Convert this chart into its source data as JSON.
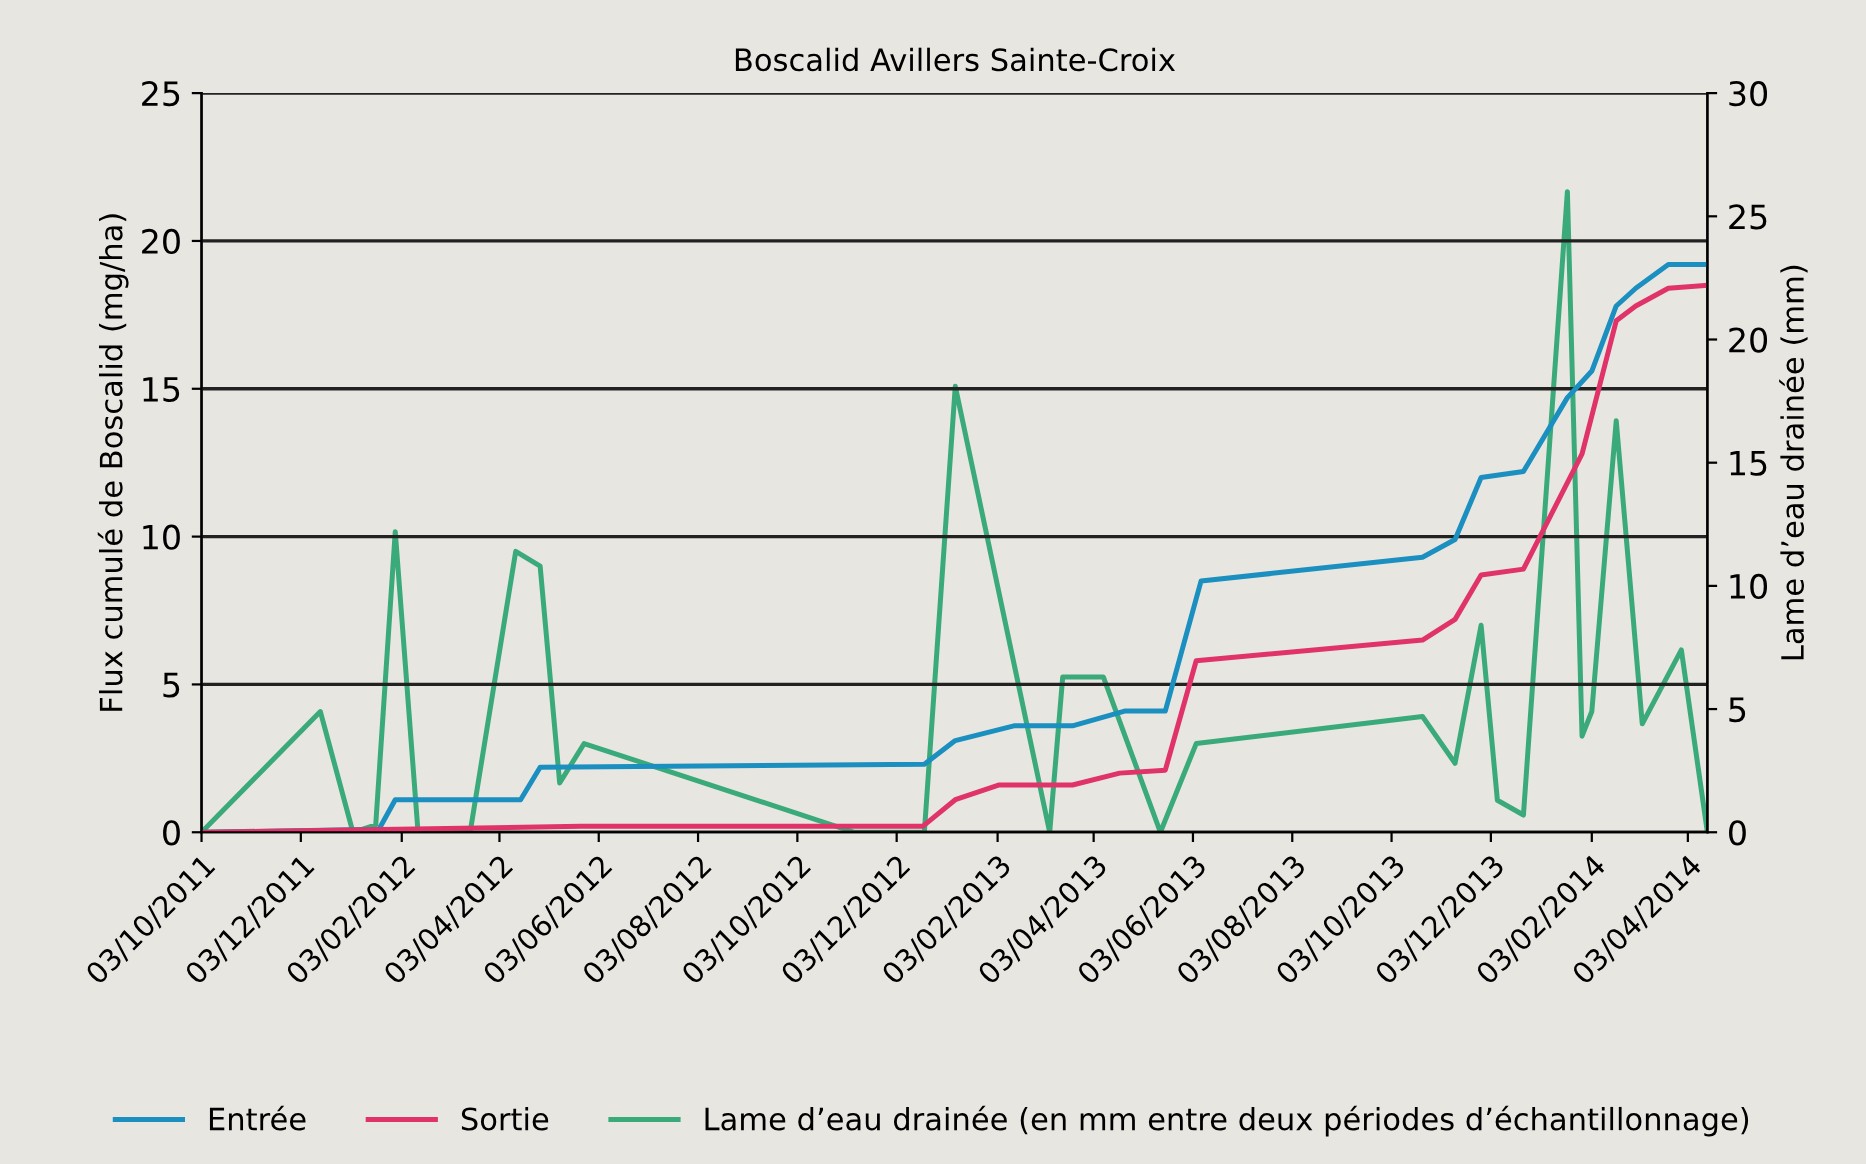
{
  "chart_data": {
    "type": "line",
    "title": "Boscalid Avillers Sainte-Croix",
    "ylabel": "Flux cumulé de Boscalid (mg/ha)",
    "y2label": "Lame d’eau drainée (mm)",
    "series": [
      {
        "name": "Entrée",
        "color": "#1a8fc0",
        "x": [
          "2011-10-03",
          "2012-01-20",
          "2012-01-30",
          "2012-04-16",
          "2012-04-28",
          "2012-12-20",
          "2013-01-08",
          "2013-02-13",
          "2013-03-21",
          "2013-04-22",
          "2013-05-17",
          "2013-06-08",
          "2013-10-22",
          "2013-11-11",
          "2013-11-27",
          "2013-12-23",
          "2014-01-19",
          "2014-02-03",
          "2014-02-18",
          "2014-03-02",
          "2014-03-22",
          "2014-04-15"
        ],
        "values": [
          0,
          0.1,
          1.1,
          1.1,
          2.2,
          2.3,
          3.1,
          3.6,
          3.6,
          4.1,
          4.1,
          8.5,
          9.3,
          9.9,
          12.0,
          12.2,
          14.7,
          15.6,
          17.8,
          18.4,
          19.2,
          19.2
        ]
      },
      {
        "name": "Sortie",
        "color": "#e0336a",
        "x": [
          "2011-10-03",
          "2012-05-23",
          "2012-12-19",
          "2013-01-08",
          "2013-02-04",
          "2013-03-21",
          "2013-04-19",
          "2013-05-17",
          "2013-06-05",
          "2013-10-22",
          "2013-11-11",
          "2013-11-27",
          "2013-12-23",
          "2014-01-28",
          "2014-02-18",
          "2014-03-02",
          "2014-03-22",
          "2014-04-15"
        ],
        "values": [
          0,
          0.2,
          0.2,
          1.1,
          1.6,
          1.6,
          2.0,
          2.1,
          5.8,
          6.5,
          7.2,
          8.7,
          8.9,
          12.8,
          17.3,
          17.8,
          18.4,
          18.5
        ]
      },
      {
        "name": "Lame d’eau drainée (en mm entre deux périodes d’échantillonnage)",
        "color": "#3aaa7a",
        "axis": "y2",
        "x": [
          "2011-10-03",
          "2011-12-15",
          "2012-01-04",
          "2012-01-18",
          "2012-01-30",
          "2012-02-13",
          "2012-03-16",
          "2012-04-13",
          "2012-04-28",
          "2012-05-10",
          "2012-05-25",
          "2012-11-07",
          "2012-12-20",
          "2013-01-08",
          "2013-03-07",
          "2013-03-15",
          "2013-04-09",
          "2013-05-14",
          "2013-06-05",
          "2013-10-22",
          "2013-11-11",
          "2013-11-27",
          "2013-12-07",
          "2013-12-23",
          "2014-01-19",
          "2014-01-28",
          "2014-02-03",
          "2014-02-18",
          "2014-03-06",
          "2014-03-30",
          "2014-04-15"
        ],
        "values": [
          0,
          4.9,
          0,
          0.3,
          12.2,
          0,
          0,
          11.4,
          10.8,
          2.0,
          3.6,
          0,
          0,
          18.1,
          0,
          6.3,
          6.3,
          0,
          3.6,
          4.7,
          2.8,
          8.4,
          1.3,
          0.7,
          26.0,
          3.9,
          4.9,
          16.7,
          4.4,
          7.4,
          0
        ]
      }
    ],
    "xlim": [
      "2011-10-03",
      "2014-04-15"
    ],
    "xticks": [
      {
        "value": "2011-10-03",
        "label": "03/10/2011"
      },
      {
        "value": "2011-12-03",
        "label": "03/12/2011"
      },
      {
        "value": "2012-02-03",
        "label": "03/02/2012"
      },
      {
        "value": "2012-04-03",
        "label": "03/04/2012"
      },
      {
        "value": "2012-06-03",
        "label": "03/06/2012"
      },
      {
        "value": "2012-08-03",
        "label": "03/08/2012"
      },
      {
        "value": "2012-10-03",
        "label": "03/10/2012"
      },
      {
        "value": "2012-12-03",
        "label": "03/12/2012"
      },
      {
        "value": "2013-02-03",
        "label": "03/02/2013"
      },
      {
        "value": "2013-04-03",
        "label": "03/04/2013"
      },
      {
        "value": "2013-06-03",
        "label": "03/06/2013"
      },
      {
        "value": "2013-08-03",
        "label": "03/08/2013"
      },
      {
        "value": "2013-10-03",
        "label": "03/10/2013"
      },
      {
        "value": "2013-12-03",
        "label": "03/12/2013"
      },
      {
        "value": "2014-02-03",
        "label": "03/02/2014"
      },
      {
        "value": "2014-04-03",
        "label": "03/04/2014"
      }
    ],
    "ylim": [
      0,
      25
    ],
    "yticks": [
      0,
      5,
      10,
      15,
      20,
      25
    ],
    "y2lim": [
      0,
      30
    ],
    "y2ticks": [
      0,
      5,
      10,
      15,
      20,
      25,
      30
    ],
    "grid": "y",
    "legend": "bottom",
    "marker": "none",
    "line_style": "solid"
  }
}
